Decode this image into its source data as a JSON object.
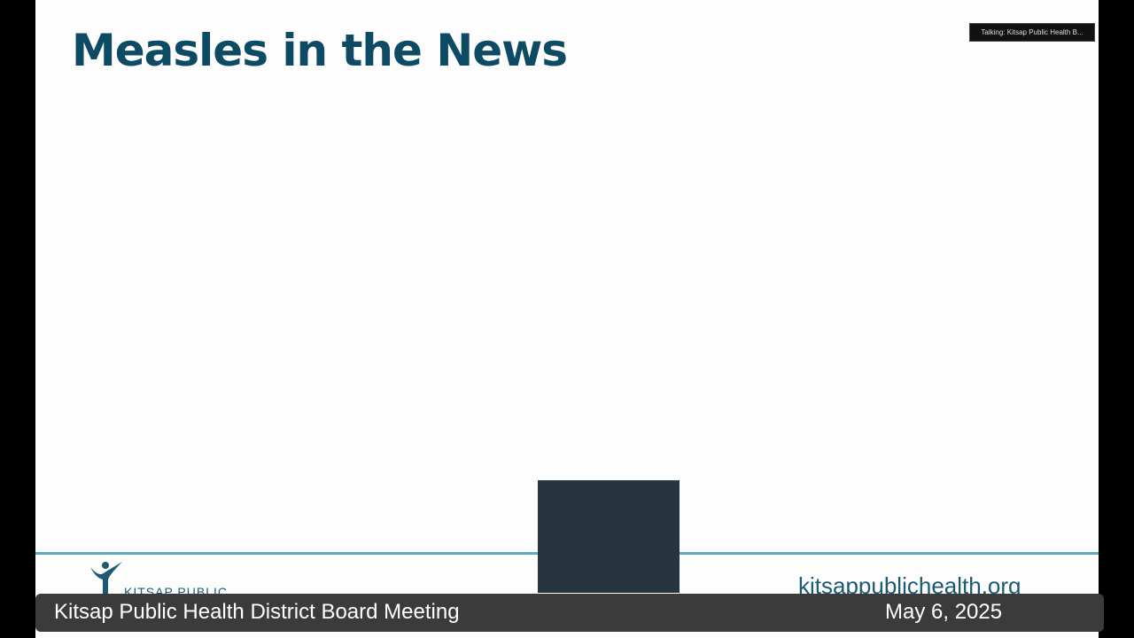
{
  "slide": {
    "title": "Measles in the News",
    "logo_text": "KITSAP PUBLIC",
    "url": "kitsappublichealth.org"
  },
  "talking_indicator": "Talking: Kitsap Public Health B...",
  "caption": {
    "title": "Kitsap Public Health District Board Meeting",
    "date": "May 6, 2025"
  }
}
